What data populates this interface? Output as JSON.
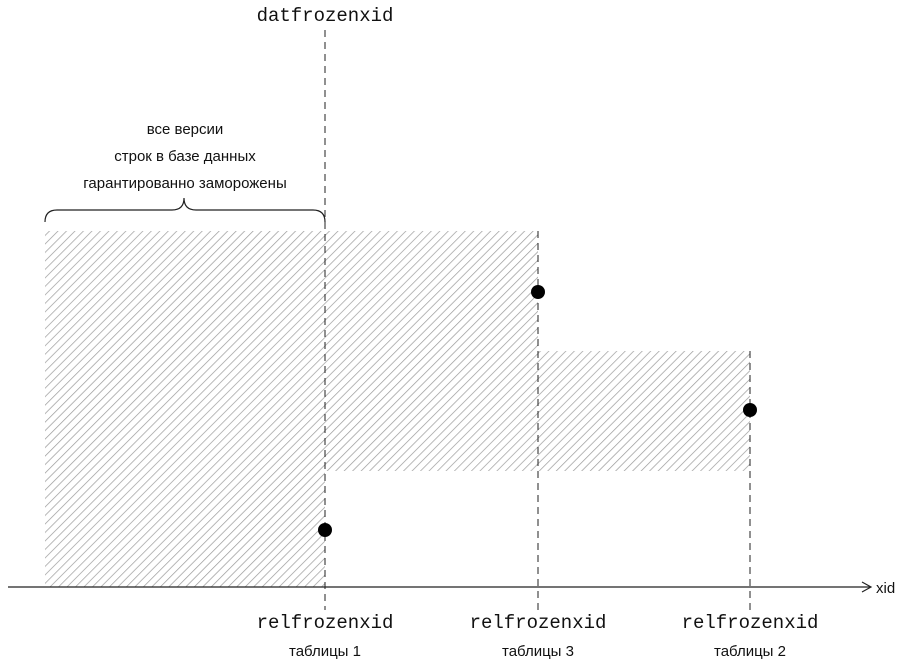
{
  "top_label": "datfrozenxid",
  "axis_label": "xid",
  "frozen_note": [
    "все версии",
    "строк в базе данных",
    "гарантированно заморожены"
  ],
  "markers": [
    {
      "code": "relfrozenxid",
      "caption": "таблицы 1"
    },
    {
      "code": "relfrozenxid",
      "caption": "таблицы 3"
    },
    {
      "code": "relfrozenxid",
      "caption": "таблицы 2"
    }
  ],
  "colors": {
    "hatch": "#9a9a9a",
    "line": "#222222",
    "dot": "#000000"
  }
}
